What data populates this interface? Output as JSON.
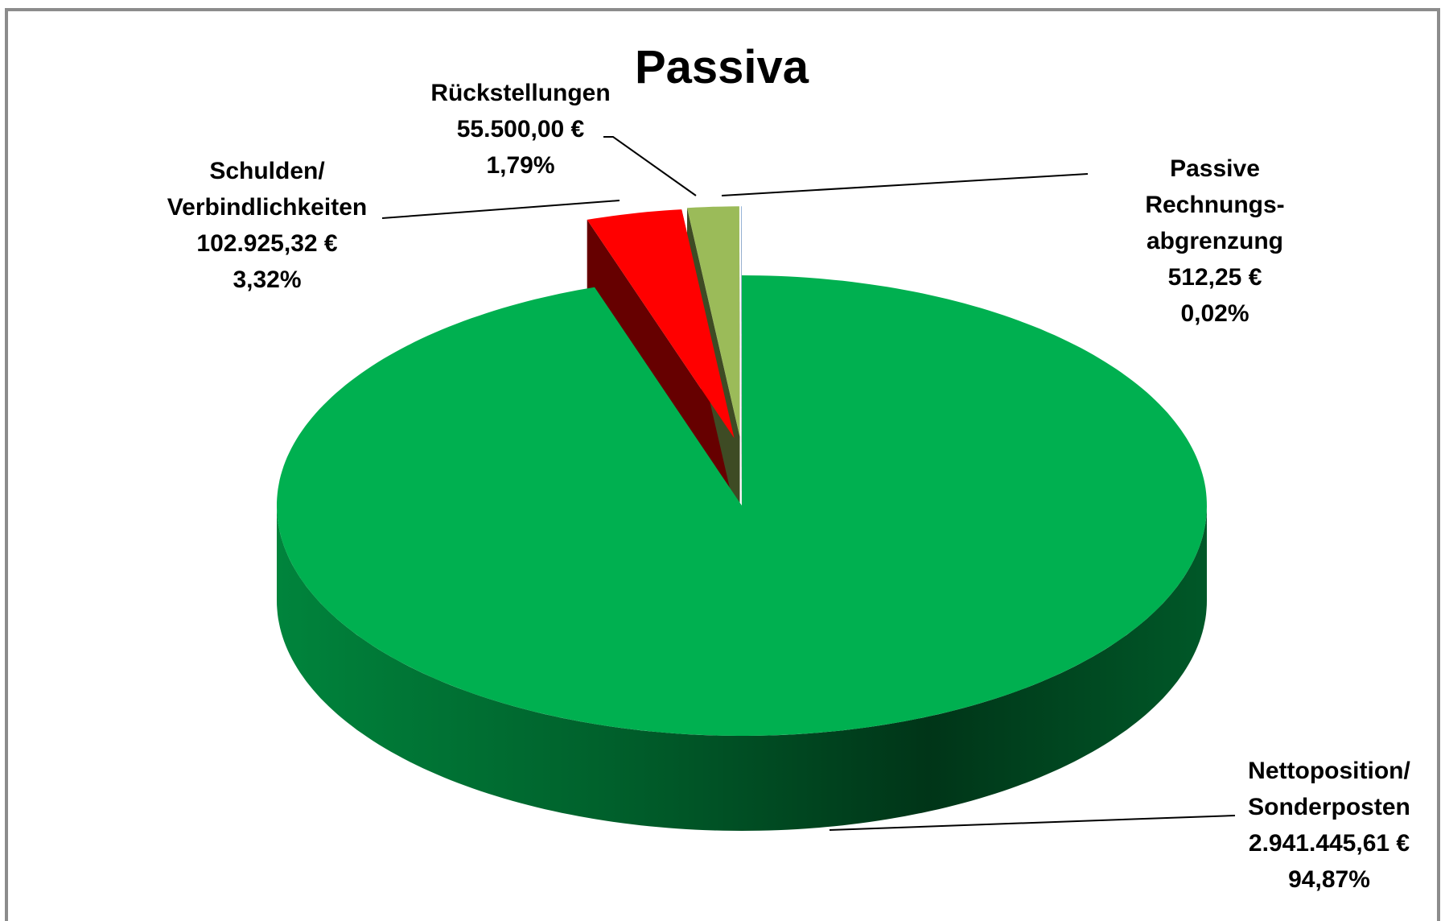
{
  "chart_data": {
    "type": "pie",
    "title": "Passiva",
    "categories": [
      "Nettoposition/\nSonderposten",
      "Schulden/\nVerbindlichkeiten",
      "Rückstellungen",
      "Passive Rechnungs-\nabgrenzung"
    ],
    "values": [
      2941445.61,
      102925.32,
      55500.0,
      512.25
    ],
    "value_labels": [
      "2.941.445,61 €",
      "102.925,32 €",
      "55.500,00 €",
      "512,25 €"
    ],
    "percent": [
      94.87,
      3.32,
      1.79,
      0.02
    ],
    "percent_labels": [
      "94,87%",
      "3,32%",
      "1,79%",
      "0,02%"
    ],
    "colors": [
      "#00b050",
      "#ff0000",
      "#9bbb59",
      "#4f81bd"
    ]
  }
}
